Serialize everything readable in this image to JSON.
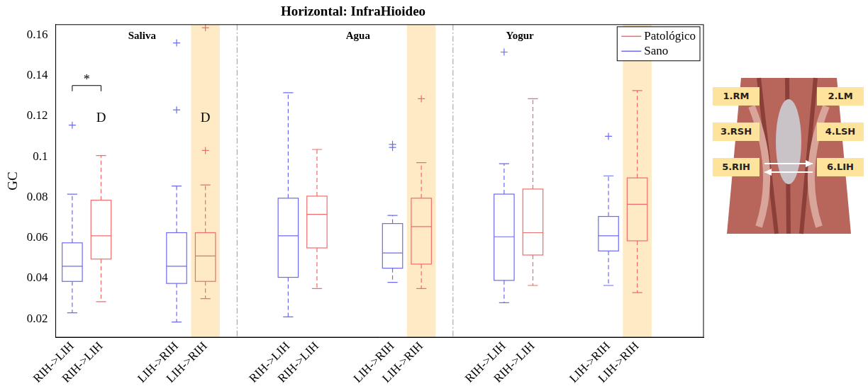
{
  "chart_data": {
    "type": "boxplot",
    "title": "Horizontal: InfraHioideo",
    "y_label": "GC",
    "groups": [
      "Saliva",
      "Agua",
      "Yogur"
    ],
    "categories": [
      "RIH->LIH",
      "RIH->LIH",
      "LIH->RIH",
      "LIH->RIH",
      "RIH->LIH",
      "RIH->LIH",
      "LIH->RIH",
      "LIH->RIH",
      "RIH->LIH",
      "RIH->LIH",
      "LIH->RIH",
      "LIH->RIH"
    ],
    "series": [
      {
        "name": "Patológico",
        "color": "#f06b6b"
      },
      {
        "name": "Sano",
        "color": "#6b6bf0"
      }
    ],
    "boxes": [
      {
        "series": "Sano",
        "whisker_low": 0.023,
        "q1": 0.0385,
        "median": 0.046,
        "q3": 0.0575,
        "whisker_high": 0.0815,
        "outliers": [
          0.1155
        ]
      },
      {
        "series": "Patológico",
        "whisker_low": 0.0285,
        "q1": 0.0495,
        "median": 0.061,
        "q3": 0.0785,
        "whisker_high": 0.1005,
        "outliers": []
      },
      {
        "series": "Sano",
        "whisker_low": 0.0185,
        "q1": 0.0375,
        "median": 0.046,
        "q3": 0.0625,
        "whisker_high": 0.0855,
        "outliers": [
          0.156,
          0.123
        ]
      },
      {
        "series": "Patológico",
        "whisker_low": 0.03,
        "q1": 0.0385,
        "median": 0.051,
        "q3": 0.0625,
        "whisker_high": 0.086,
        "outliers": [
          0.1635,
          0.103
        ],
        "highlight": true
      },
      {
        "series": "Sano",
        "whisker_low": 0.021,
        "q1": 0.0405,
        "median": 0.061,
        "q3": 0.0795,
        "whisker_high": 0.1315,
        "outliers": []
      },
      {
        "series": "Patológico",
        "whisker_low": 0.035,
        "q1": 0.055,
        "median": 0.0715,
        "q3": 0.0805,
        "whisker_high": 0.1035,
        "outliers": []
      },
      {
        "series": "Sano",
        "whisker_low": 0.038,
        "q1": 0.045,
        "median": 0.0525,
        "q3": 0.067,
        "whisker_high": 0.071,
        "outliers": [
          0.106,
          0.1045
        ]
      },
      {
        "series": "Patológico",
        "whisker_low": 0.035,
        "q1": 0.047,
        "median": 0.0655,
        "q3": 0.0795,
        "whisker_high": 0.097,
        "outliers": [
          0.1285
        ],
        "highlight": true
      },
      {
        "series": "Sano",
        "whisker_low": 0.028,
        "q1": 0.039,
        "median": 0.0605,
        "q3": 0.0815,
        "whisker_high": 0.0965,
        "outliers": [
          0.1515
        ]
      },
      {
        "series": "Patológico",
        "whisker_low": 0.0365,
        "q1": 0.0515,
        "median": 0.0625,
        "q3": 0.084,
        "whisker_high": 0.1285,
        "outliers": []
      },
      {
        "series": "Sano",
        "whisker_low": 0.0365,
        "q1": 0.0535,
        "median": 0.061,
        "q3": 0.0705,
        "whisker_high": 0.0905,
        "outliers": [
          0.11
        ]
      },
      {
        "series": "Patológico",
        "whisker_low": 0.033,
        "q1": 0.0585,
        "median": 0.0765,
        "q3": 0.0895,
        "whisker_high": 0.1325,
        "outliers": [],
        "highlight": true
      }
    ],
    "annotations": [
      {
        "text": "*",
        "boxes": [
          0,
          1
        ],
        "y": 0.135
      },
      {
        "text": "D",
        "boxes": [
          1
        ],
        "y": 0.119
      },
      {
        "text": "D",
        "boxes": [
          3
        ],
        "y": 0.119
      }
    ],
    "ylim": [
      0.011,
      0.165
    ],
    "yticks": [
      0.02,
      0.04,
      0.06,
      0.08,
      0.1,
      0.12,
      0.14,
      0.16
    ],
    "grid": false,
    "legend": "upper right",
    "inset_labels": [
      "1.RM",
      "2.LM",
      "3.RSH",
      "4.LSH",
      "5.RIH",
      "6.LIH"
    ]
  }
}
